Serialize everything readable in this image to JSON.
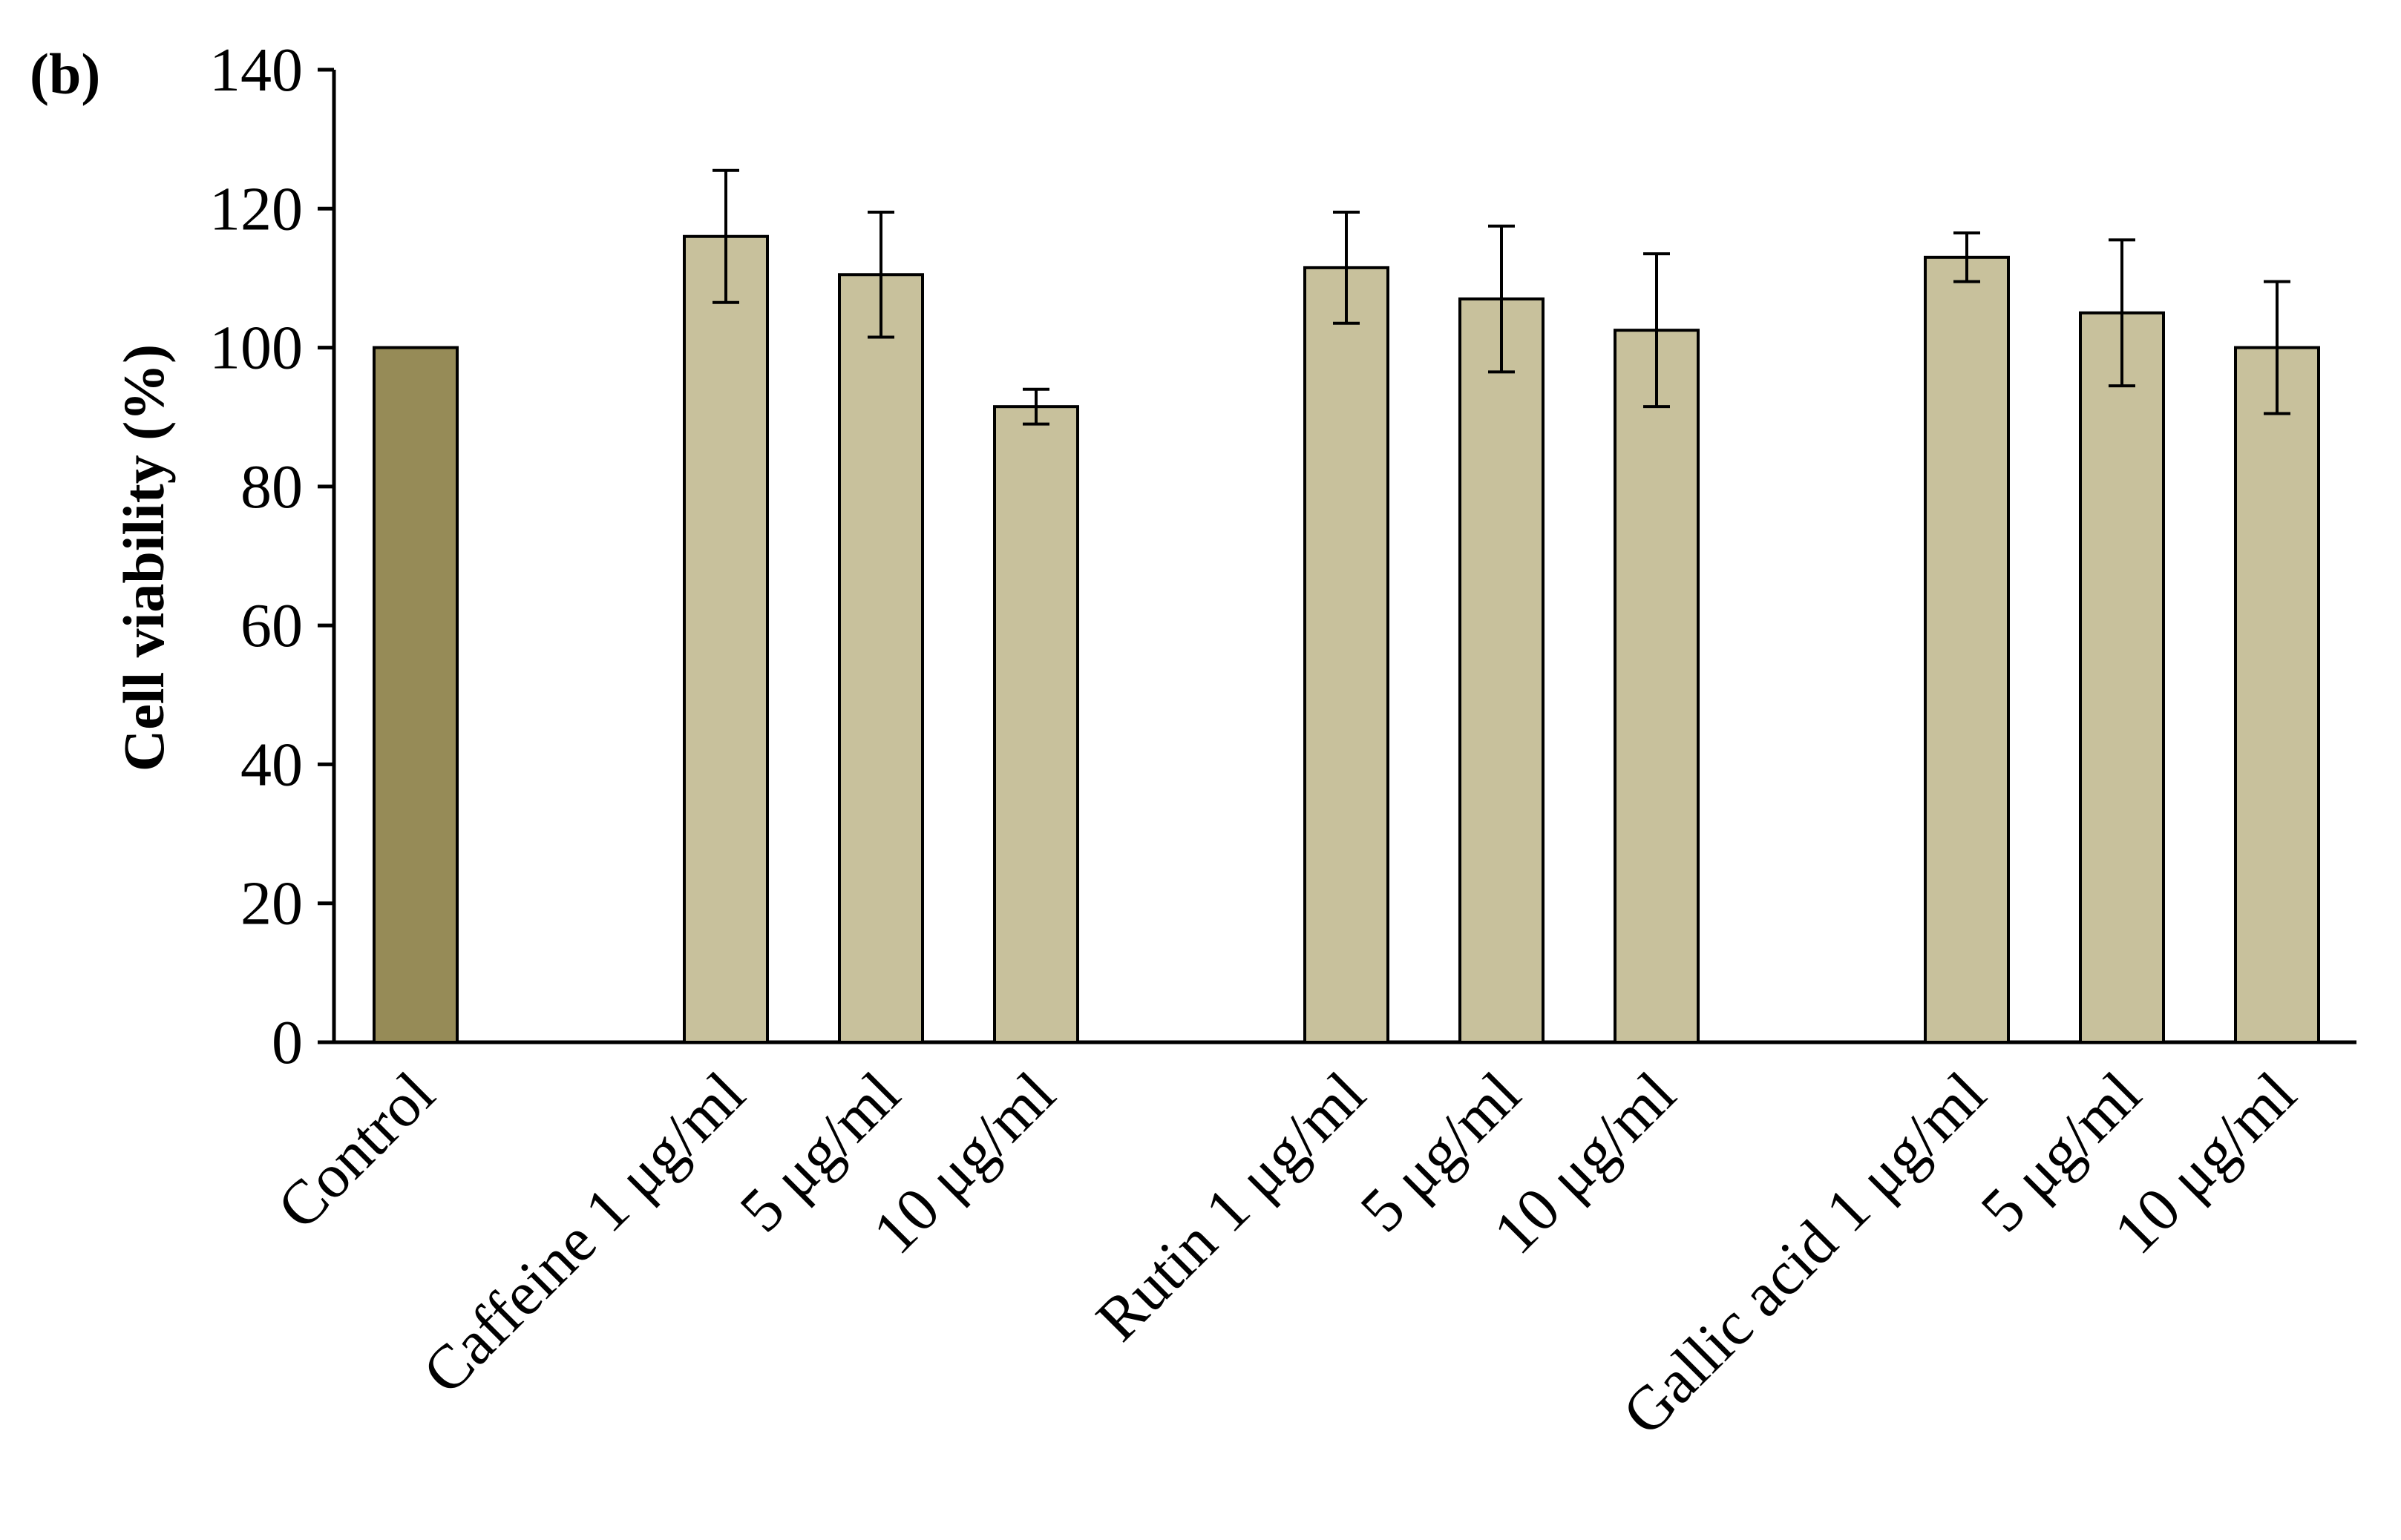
{
  "chart_data": {
    "type": "bar",
    "panel_label": "(b)",
    "ylabel": "Cell viability (%)",
    "xlabel": "",
    "ylim": [
      0,
      140
    ],
    "yticks": [
      0,
      20,
      40,
      60,
      80,
      100,
      120,
      140
    ],
    "ytick_labels": [
      "0",
      "20",
      "40",
      "60",
      "80",
      "100",
      "120",
      "140"
    ],
    "grid": false,
    "categories": [
      "Control",
      "",
      "Caffeine 1 μg/ml",
      "5 μg/ml",
      "10 μg/ml",
      "",
      "Rutin 1 μg/ml",
      "5 μg/ml",
      "10 μg/ml",
      "",
      "Gallic acid 1 μg/ml",
      "5 μg/ml",
      "10 μg/ml"
    ],
    "values": [
      100,
      null,
      116,
      110.5,
      91.5,
      null,
      111.5,
      107,
      102.5,
      null,
      113,
      105,
      100
    ],
    "errors": [
      0,
      null,
      9.5,
      9,
      2.5,
      null,
      8,
      10.5,
      11,
      null,
      3.5,
      10.5,
      9.5
    ],
    "colors": {
      "control": "#968b57",
      "treatment": "#c8c19c",
      "outline": "#000000"
    }
  }
}
